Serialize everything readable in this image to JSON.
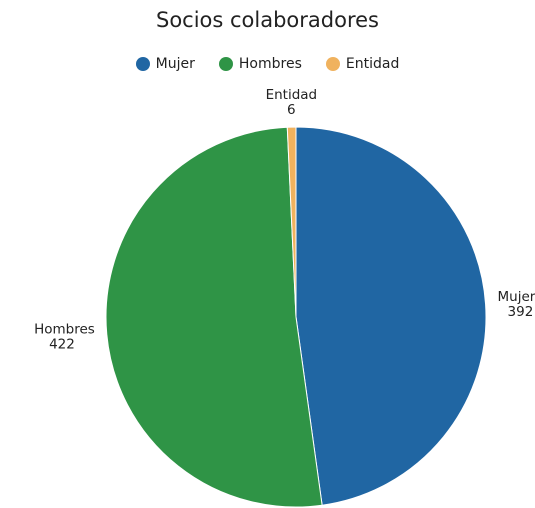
{
  "chart_data": {
    "type": "pie",
    "title": "Socios colaboradores",
    "legend_position": "top",
    "slices": [
      {
        "label": "Mujer",
        "value": 392,
        "color": "#2066a3"
      },
      {
        "label": "Hombres",
        "value": 422,
        "color": "#2f9446"
      },
      {
        "label": "Entidad",
        "value": 6,
        "color": "#f0b25e"
      }
    ]
  }
}
